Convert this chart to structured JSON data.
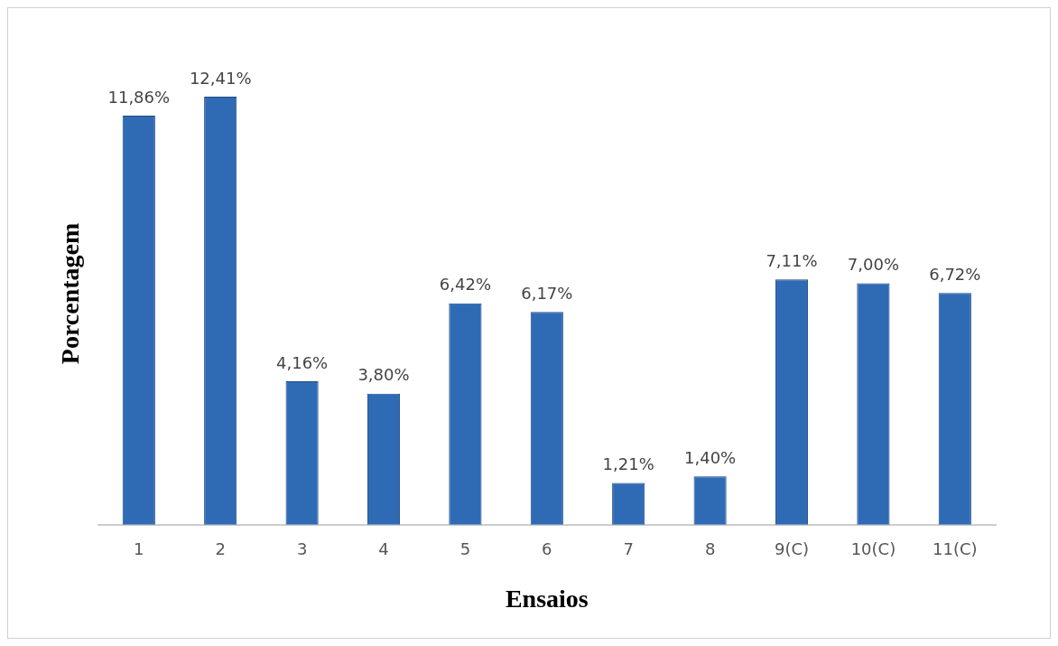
{
  "chart_data": {
    "type": "bar",
    "xlabel": "Ensaios",
    "ylabel": "Porcentagem",
    "categories": [
      "1",
      "2",
      "3",
      "4",
      "5",
      "6",
      "7",
      "8",
      "9(C)",
      "10(C)",
      "11(C)"
    ],
    "values": [
      11.86,
      12.41,
      4.16,
      3.8,
      6.42,
      6.17,
      1.21,
      1.4,
      7.11,
      7.0,
      6.72
    ],
    "value_labels": [
      "11,86%",
      "12,41%",
      "4,16%",
      "3,80%",
      "6,42%",
      "6,17%",
      "1,21%",
      "1,40%",
      "7,11%",
      "7,00%",
      "6,72%"
    ],
    "color": "#2f6bb5",
    "grid": false,
    "legend": false
  }
}
